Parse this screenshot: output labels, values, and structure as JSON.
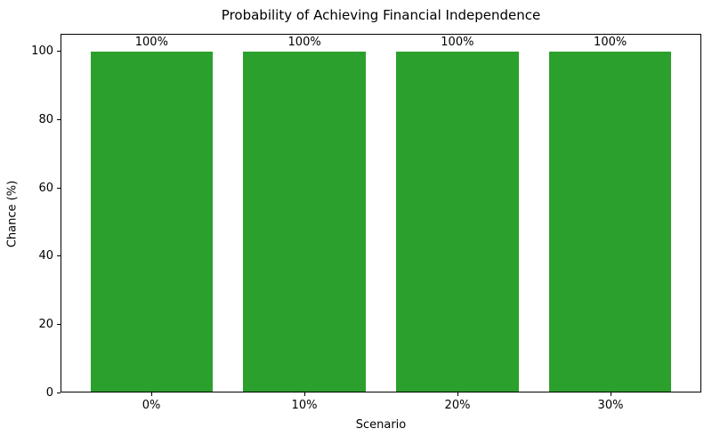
{
  "chart_data": {
    "type": "bar",
    "title": "Probability of Achieving Financial Independence",
    "xlabel": "Scenario",
    "ylabel": "Chance (%)",
    "categories": [
      "0%",
      "10%",
      "20%",
      "30%"
    ],
    "values": [
      100,
      100,
      100,
      100
    ],
    "bar_labels": [
      "100%",
      "100%",
      "100%",
      "100%"
    ],
    "yticks": [
      0,
      20,
      40,
      60,
      80,
      100
    ],
    "ylim": [
      0,
      105
    ],
    "xlim_units": [
      -0.59,
      3.59
    ],
    "bar_width_units": 0.8,
    "bar_color": "#2ca02c",
    "text_color": "#000000",
    "background_color": "#ffffff",
    "grid": false,
    "legend": null
  }
}
